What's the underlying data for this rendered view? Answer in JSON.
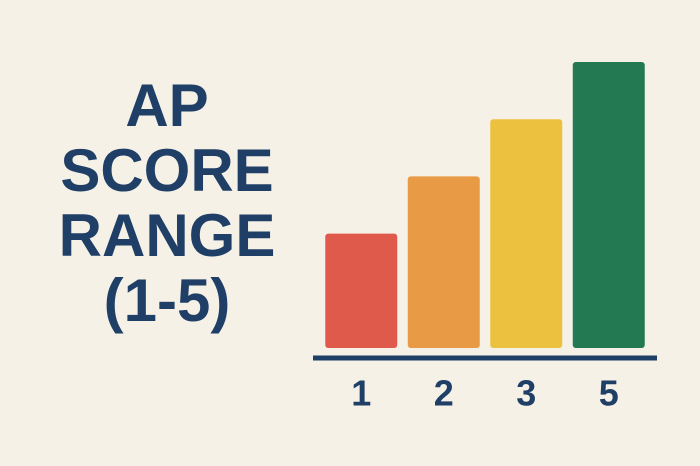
{
  "chart_data": {
    "type": "bar",
    "title_lines": [
      "AP",
      "SCORE",
      "RANGE",
      "(1-5)"
    ],
    "categories": [
      "1",
      "2",
      "3",
      "5"
    ],
    "values": [
      2,
      3,
      4,
      5
    ],
    "colors": [
      "#e05a4b",
      "#e99a44",
      "#ecc13f",
      "#237a52"
    ],
    "ylim": [
      0,
      5
    ]
  }
}
